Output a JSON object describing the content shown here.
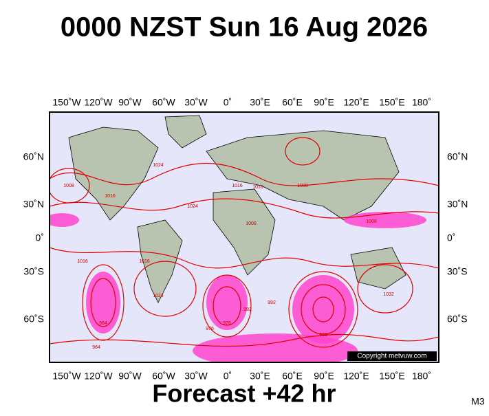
{
  "header": {
    "title": "0000 NZST Sun 16 Aug 2026"
  },
  "map": {
    "lon_labels": [
      "150˚W",
      "120˚W",
      "90˚W",
      "60˚W",
      "30˚W",
      "0˚",
      "30˚E",
      "60˚E",
      "90˚E",
      "120˚E",
      "150˚E",
      "180˚"
    ],
    "lat_labels": [
      "60˚N",
      "30˚N",
      "0˚",
      "30˚S",
      "60˚S"
    ],
    "isobar_labels": [
      "1016",
      "1024",
      "1016",
      "1016",
      "1008",
      "1008",
      "1016",
      "1024",
      "1032",
      "1024",
      "1008",
      "992",
      "984",
      "976",
      "968",
      "976",
      "984",
      "992",
      "1016",
      "1008"
    ],
    "copyright": "Copyright metvuw.com"
  },
  "footer": {
    "forecast": "Forecast +42 hr",
    "code": "M3"
  }
}
